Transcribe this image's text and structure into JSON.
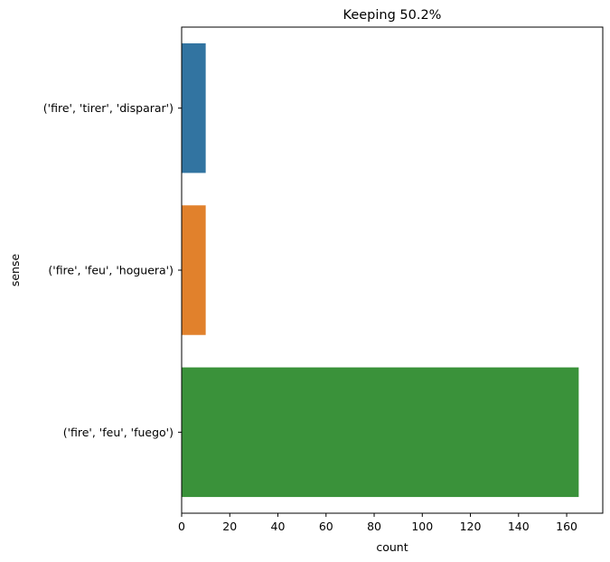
{
  "chart_data": {
    "type": "bar",
    "orientation": "horizontal",
    "title": "Keeping 50.2%",
    "xlabel": "count",
    "ylabel": "sense",
    "categories": [
      "('fire', 'tirer', 'disparar')",
      "('fire', 'feu', 'hoguera')",
      "('fire', 'feu', 'fuego')"
    ],
    "values": [
      10,
      10,
      165
    ],
    "colors": [
      "#3274a1",
      "#e1812c",
      "#3a923a"
    ],
    "xlim": [
      0,
      175
    ],
    "xticks": [
      0,
      20,
      40,
      60,
      80,
      100,
      120,
      140,
      160
    ],
    "grid": false,
    "legend": "none"
  }
}
